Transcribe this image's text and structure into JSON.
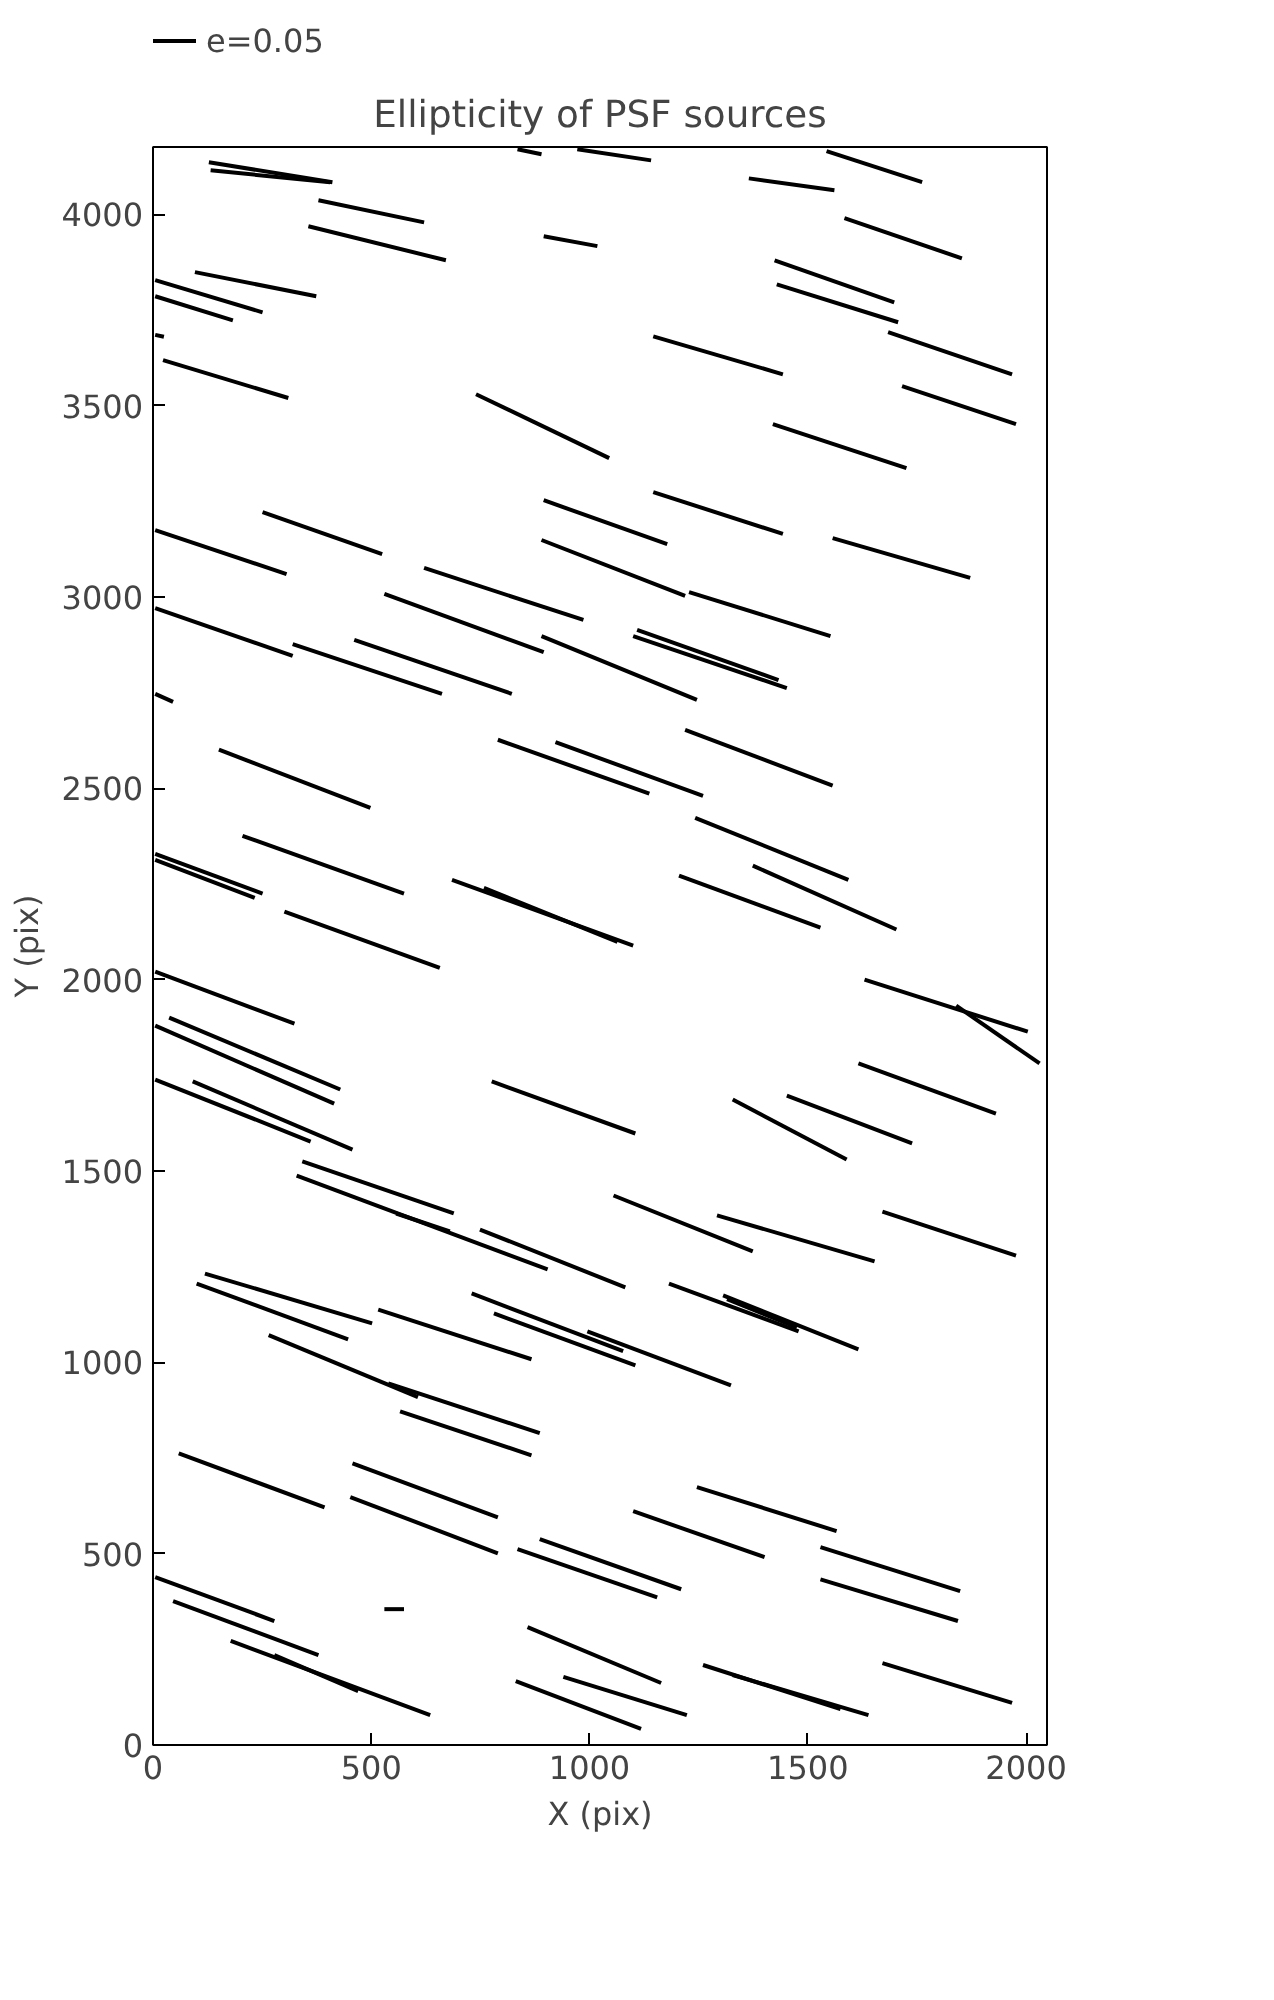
{
  "chart_data": {
    "type": "line",
    "title": "Ellipticity of PSF sources",
    "xlabel": "X (pix)",
    "ylabel": "Y (pix)",
    "xlim": [
      0,
      2048
    ],
    "ylim": [
      0,
      4176
    ],
    "xticks": [
      0,
      500,
      1000,
      1500,
      2000
    ],
    "yticks": [
      0,
      500,
      1000,
      1500,
      2000,
      2500,
      3000,
      3500,
      4000
    ],
    "grid": false,
    "legend": "top left",
    "line_style": "solid",
    "marker": "none",
    "series": [
      {
        "name": "e=0.05",
        "color": "#000000",
        "x": [
          128,
          411
        ],
        "values": [
          4136,
          4084
        ]
      },
      {
        "color": "#000000",
        "x": [
          132,
          406
        ],
        "values": [
          4115,
          4084
        ]
      },
      {
        "color": "#000000",
        "x": [
          835,
          890
        ],
        "values": [
          4170,
          4157
        ]
      },
      {
        "color": "#000000",
        "x": [
          972,
          1141
        ],
        "values": [
          4170,
          4141
        ]
      },
      {
        "color": "#000000",
        "x": [
          1543,
          1762
        ],
        "values": [
          4165,
          4084
        ]
      },
      {
        "color": "#000000",
        "x": [
          1365,
          1561
        ],
        "values": [
          4094,
          4063
        ]
      },
      {
        "color": "#000000",
        "x": [
          379,
          621
        ],
        "values": [
          4037,
          3979
        ]
      },
      {
        "color": "#000000",
        "x": [
          356,
          671
        ],
        "values": [
          3969,
          3880
        ]
      },
      {
        "color": "#000000",
        "x": [
          895,
          1018
        ],
        "values": [
          3943,
          3917
        ]
      },
      {
        "color": "#000000",
        "x": [
          1584,
          1853
        ],
        "values": [
          3990,
          3885
        ]
      },
      {
        "color": "#000000",
        "x": [
          1424,
          1698
        ],
        "values": [
          3880,
          3770
        ]
      },
      {
        "color": "#000000",
        "x": [
          1429,
          1707
        ],
        "values": [
          3817,
          3718
        ]
      },
      {
        "color": "#000000",
        "x": [
          1684,
          1968
        ],
        "values": [
          3692,
          3582
        ]
      },
      {
        "color": "#000000",
        "x": [
          1146,
          1443
        ],
        "values": [
          3681,
          3582
        ]
      },
      {
        "color": "#000000",
        "x": [
          1716,
          1977
        ],
        "values": [
          3551,
          3452
        ]
      },
      {
        "color": "#000000",
        "x": [
          96,
          374
        ],
        "values": [
          3849,
          3786
        ]
      },
      {
        "color": "#000000",
        "x": [
          5,
          251
        ],
        "values": [
          3828,
          3744
        ]
      },
      {
        "color": "#000000",
        "x": [
          5,
          183
        ],
        "values": [
          3786,
          3723
        ]
      },
      {
        "color": "#000000",
        "x": [
          5,
          25
        ],
        "values": [
          3685,
          3680
        ]
      },
      {
        "color": "#000000",
        "x": [
          23,
          310
        ],
        "values": [
          3619,
          3520
        ]
      },
      {
        "color": "#000000",
        "x": [
          740,
          1045
        ],
        "values": [
          3530,
          3363
        ]
      },
      {
        "color": "#000000",
        "x": [
          1420,
          1726
        ],
        "values": [
          3452,
          3337
        ]
      },
      {
        "color": "#000000",
        "x": [
          251,
          525
        ],
        "values": [
          3222,
          3112
        ]
      },
      {
        "color": "#000000",
        "x": [
          895,
          1178
        ],
        "values": [
          3253,
          3138
        ]
      },
      {
        "color": "#000000",
        "x": [
          890,
          1219
        ],
        "values": [
          3149,
          3003
        ]
      },
      {
        "color": "#000000",
        "x": [
          1146,
          1443
        ],
        "values": [
          3274,
          3165
        ]
      },
      {
        "color": "#000000",
        "x": [
          1557,
          1872
        ],
        "values": [
          3154,
          3050
        ]
      },
      {
        "color": "#000000",
        "x": [
          5,
          306
        ],
        "values": [
          3175,
          3060
        ]
      },
      {
        "color": "#000000",
        "x": [
          621,
          986
        ],
        "values": [
          3076,
          2940
        ]
      },
      {
        "color": "#000000",
        "x": [
          530,
          895
        ],
        "values": [
          3008,
          2856
        ]
      },
      {
        "color": "#000000",
        "x": [
          1228,
          1552
        ],
        "values": [
          3013,
          2898
        ]
      },
      {
        "color": "#000000",
        "x": [
          5,
          320
        ],
        "values": [
          2971,
          2846
        ]
      },
      {
        "color": "#000000",
        "x": [
          320,
          662
        ],
        "values": [
          2877,
          2747
        ]
      },
      {
        "color": "#000000",
        "x": [
          461,
          822
        ],
        "values": [
          2888,
          2747
        ]
      },
      {
        "color": "#000000",
        "x": [
          890,
          1246
        ],
        "values": [
          2898,
          2731
        ]
      },
      {
        "color": "#000000",
        "x": [
          1109,
          1433
        ],
        "values": [
          2914,
          2783
        ]
      },
      {
        "color": "#000000",
        "x": [
          1100,
          1452
        ],
        "values": [
          2898,
          2762
        ]
      },
      {
        "color": "#000000",
        "x": [
          5,
          46
        ],
        "values": [
          2747,
          2726
        ]
      },
      {
        "color": "#000000",
        "x": [
          151,
          498
        ],
        "values": [
          2601,
          2449
        ]
      },
      {
        "color": "#000000",
        "x": [
          790,
          1137
        ],
        "values": [
          2627,
          2486
        ]
      },
      {
        "color": "#000000",
        "x": [
          922,
          1260
        ],
        "values": [
          2621,
          2480
        ]
      },
      {
        "color": "#000000",
        "x": [
          1219,
          1557
        ],
        "values": [
          2653,
          2507
        ]
      },
      {
        "color": "#000000",
        "x": [
          1242,
          1593
        ],
        "values": [
          2423,
          2261
        ]
      },
      {
        "color": "#000000",
        "x": [
          1205,
          1529
        ],
        "values": [
          2272,
          2136
        ]
      },
      {
        "color": "#000000",
        "x": [
          1374,
          1703
        ],
        "values": [
          2298,
          2131
        ]
      },
      {
        "color": "#000000",
        "x": [
          685,
          1100
        ],
        "values": [
          2261,
          2089
        ]
      },
      {
        "color": "#000000",
        "x": [
          758,
          1064
        ],
        "values": [
          2240,
          2099
        ]
      },
      {
        "color": "#000000",
        "x": [
          205,
          575
        ],
        "values": [
          2376,
          2225
        ]
      },
      {
        "color": "#000000",
        "x": [
          301,
          657
        ],
        "values": [
          2178,
          2031
        ]
      },
      {
        "color": "#000000",
        "x": [
          5,
          251
        ],
        "values": [
          2329,
          2225
        ]
      },
      {
        "color": "#000000",
        "x": [
          5,
          233
        ],
        "values": [
          2313,
          2214
        ]
      },
      {
        "color": "#000000",
        "x": [
          5,
          324
        ],
        "values": [
          2021,
          1885
        ]
      },
      {
        "color": "#000000",
        "x": [
          37,
          429
        ],
        "values": [
          1901,
          1713
        ]
      },
      {
        "color": "#000000",
        "x": [
          5,
          415
        ],
        "values": [
          1880,
          1676
        ]
      },
      {
        "color": "#000000",
        "x": [
          5,
          361
        ],
        "values": [
          1739,
          1577
        ]
      },
      {
        "color": "#000000",
        "x": [
          91,
          457
        ],
        "values": [
          1734,
          1556
        ]
      },
      {
        "color": "#000000",
        "x": [
          776,
          1105
        ],
        "values": [
          1734,
          1598
        ]
      },
      {
        "color": "#000000",
        "x": [
          342,
          689
        ],
        "values": [
          1525,
          1389
        ]
      },
      {
        "color": "#000000",
        "x": [
          329,
          904
        ],
        "values": [
          1488,
          1243
        ]
      },
      {
        "color": "#000000",
        "x": [
          557,
          680
        ],
        "values": [
          1389,
          1342
        ]
      },
      {
        "color": "#000000",
        "x": [
          749,
          1082
        ],
        "values": [
          1347,
          1196
        ]
      },
      {
        "color": "#000000",
        "x": [
          119,
          502
        ],
        "values": [
          1232,
          1102
        ]
      },
      {
        "color": "#000000",
        "x": [
          100,
          447
        ],
        "values": [
          1206,
          1060
        ]
      },
      {
        "color": "#000000",
        "x": [
          516,
          867
        ],
        "values": [
          1138,
          1008
        ]
      },
      {
        "color": "#000000",
        "x": [
          265,
          607
        ],
        "values": [
          1071,
          909
        ]
      },
      {
        "color": "#000000",
        "x": [
          539,
          886
        ],
        "values": [
          945,
          815
        ]
      },
      {
        "color": "#000000",
        "x": [
          566,
          867
        ],
        "values": [
          872,
          757
        ]
      },
      {
        "color": "#000000",
        "x": [
          730,
          1077
        ],
        "values": [
          1180,
          1029
        ]
      },
      {
        "color": "#000000",
        "x": [
          781,
          1105
        ],
        "values": [
          1128,
          992
        ]
      },
      {
        "color": "#000000",
        "x": [
          995,
          1324
        ],
        "values": [
          1081,
          940
        ]
      },
      {
        "color": "#000000",
        "x": [
          59,
          393
        ],
        "values": [
          762,
          621
        ]
      },
      {
        "color": "#000000",
        "x": [
          457,
          790
        ],
        "values": [
          736,
          595
        ]
      },
      {
        "color": "#000000",
        "x": [
          452,
          790
        ],
        "values": [
          648,
          501
        ]
      },
      {
        "color": "#000000",
        "x": [
          886,
          1210
        ],
        "values": [
          538,
          407
        ]
      },
      {
        "color": "#000000",
        "x": [
          835,
          1155
        ],
        "values": [
          512,
          386
        ]
      },
      {
        "color": "#000000",
        "x": [
          5,
          278
        ],
        "values": [
          439,
          324
        ]
      },
      {
        "color": "#000000",
        "x": [
          46,
          379
        ],
        "values": [
          376,
          235
        ]
      },
      {
        "color": "#000000",
        "x": [
          530,
          575
        ],
        "values": [
          355,
          355
        ]
      },
      {
        "color": "#000000",
        "x": [
          178,
          635
        ],
        "values": [
          272,
          78
        ]
      },
      {
        "color": "#000000",
        "x": [
          278,
          470
        ],
        "values": [
          235,
          141
        ]
      },
      {
        "color": "#000000",
        "x": [
          858,
          1164
        ],
        "values": [
          308,
          162
        ]
      },
      {
        "color": "#000000",
        "x": [
          940,
          1223
        ],
        "values": [
          178,
          78
        ]
      },
      {
        "color": "#000000",
        "x": [
          831,
          1118
        ],
        "values": [
          167,
          42
        ]
      },
      {
        "color": "#000000",
        "x": [
          1630,
          2004
        ],
        "values": [
          2000,
          1864
        ]
      },
      {
        "color": "#000000",
        "x": [
          1840,
          2031
        ],
        "values": [
          1932,
          1781
        ]
      },
      {
        "color": "#000000",
        "x": [
          1616,
          1931
        ],
        "values": [
          1781,
          1650
        ]
      },
      {
        "color": "#000000",
        "x": [
          1328,
          1589
        ],
        "values": [
          1687,
          1530
        ]
      },
      {
        "color": "#000000",
        "x": [
          1452,
          1739
        ],
        "values": [
          1697,
          1572
        ]
      },
      {
        "color": "#000000",
        "x": [
          1055,
          1374
        ],
        "values": [
          1436,
          1290
        ]
      },
      {
        "color": "#000000",
        "x": [
          1292,
          1653
        ],
        "values": [
          1384,
          1264
        ]
      },
      {
        "color": "#000000",
        "x": [
          1671,
          1977
        ],
        "values": [
          1394,
          1279
        ]
      },
      {
        "color": "#000000",
        "x": [
          1182,
          1479
        ],
        "values": [
          1206,
          1081
        ]
      },
      {
        "color": "#000000",
        "x": [
          1306,
          1616
        ],
        "values": [
          1175,
          1034
        ]
      },
      {
        "color": "#000000",
        "x": [
          1315,
          1475
        ],
        "values": [
          1165,
          1091
        ]
      },
      {
        "color": "#000000",
        "x": [
          1246,
          1566
        ],
        "values": [
          674,
          559
        ]
      },
      {
        "color": "#000000",
        "x": [
          1100,
          1401
        ],
        "values": [
          611,
          491
        ]
      },
      {
        "color": "#000000",
        "x": [
          1529,
          1849
        ],
        "values": [
          517,
          402
        ]
      },
      {
        "color": "#000000",
        "x": [
          1529,
          1844
        ],
        "values": [
          433,
          324
        ]
      },
      {
        "color": "#000000",
        "x": [
          1260,
          1575
        ],
        "values": [
          209,
          94
        ]
      },
      {
        "color": "#000000",
        "x": [
          1328,
          1639
        ],
        "values": [
          183,
          78
        ]
      },
      {
        "color": "#000000",
        "x": [
          1671,
          1968
        ],
        "values": [
          214,
          110
        ]
      }
    ]
  }
}
